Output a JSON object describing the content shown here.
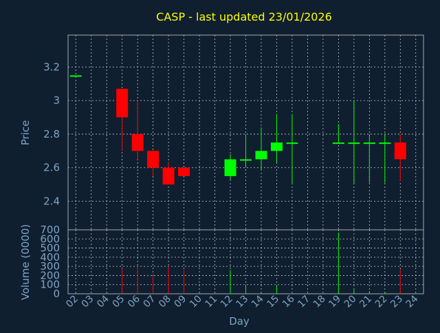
{
  "chart_data": {
    "type": "candlestick",
    "title": "CASP - last updated 23/01/2026",
    "xlabel": "Day",
    "ylabel": "Price",
    "volume_label": "Volume (0000)",
    "x_ticks": [
      "02",
      "03",
      "04",
      "05",
      "06",
      "07",
      "08",
      "09",
      "10",
      "11",
      "12",
      "13",
      "14",
      "15",
      "16",
      "17",
      "18",
      "19",
      "20",
      "21",
      "22",
      "23",
      "24"
    ],
    "price_ticks": [
      "2.4",
      "2.6",
      "2.8",
      "3",
      "3.2"
    ],
    "price_tick_values": [
      2.4,
      2.6,
      2.8,
      3.0,
      3.2
    ],
    "volume_ticks": [
      "0",
      "100",
      "200",
      "300",
      "400",
      "500",
      "600",
      "700"
    ],
    "volume_tick_values": [
      0,
      100,
      200,
      300,
      400,
      500,
      600,
      700
    ],
    "price_ylim": [
      2.23,
      3.39
    ],
    "volume_ylim": [
      0,
      700
    ],
    "grid": true,
    "colors": {
      "up": "#00ff00",
      "down": "#ff0000",
      "title": "#ffff00",
      "axis_text": "#7fa4c4",
      "grid": "#c8c8c8",
      "frame": "#aaaaaa"
    },
    "candles": [
      {
        "day": "02",
        "open": 3.15,
        "high": 3.15,
        "low": 3.15,
        "close": 3.15
      },
      {
        "day": "05",
        "open": 3.07,
        "high": 3.07,
        "low": 2.7,
        "close": 2.9
      },
      {
        "day": "06",
        "open": 2.8,
        "high": 3.0,
        "low": 2.65,
        "close": 2.7
      },
      {
        "day": "07",
        "open": 2.7,
        "high": 2.7,
        "low": 2.55,
        "close": 2.6
      },
      {
        "day": "08",
        "open": 2.6,
        "high": 2.63,
        "low": 2.5,
        "close": 2.5
      },
      {
        "day": "09",
        "open": 2.6,
        "high": 2.6,
        "low": 2.55,
        "close": 2.55
      },
      {
        "day": "12",
        "open": 2.55,
        "high": 2.68,
        "low": 2.53,
        "close": 2.65
      },
      {
        "day": "13",
        "open": 2.65,
        "high": 2.8,
        "low": 2.6,
        "close": 2.65
      },
      {
        "day": "14",
        "open": 2.65,
        "high": 2.84,
        "low": 2.59,
        "close": 2.7
      },
      {
        "day": "15",
        "open": 2.7,
        "high": 2.92,
        "low": 2.63,
        "close": 2.75
      },
      {
        "day": "16",
        "open": 2.75,
        "high": 2.92,
        "low": 2.5,
        "close": 2.75
      },
      {
        "day": "19",
        "open": 2.75,
        "high": 2.86,
        "low": 2.75,
        "close": 2.75
      },
      {
        "day": "20",
        "open": 2.75,
        "high": 3.0,
        "low": 2.5,
        "close": 2.75
      },
      {
        "day": "21",
        "open": 2.75,
        "high": 2.8,
        "low": 2.51,
        "close": 2.75
      },
      {
        "day": "22",
        "open": 2.75,
        "high": 2.8,
        "low": 2.51,
        "close": 2.75
      },
      {
        "day": "23",
        "open": 2.75,
        "high": 2.8,
        "low": 2.52,
        "close": 2.65
      }
    ],
    "volume": [
      {
        "day": "05",
        "value": 280,
        "dir": "down"
      },
      {
        "day": "06",
        "value": 290,
        "dir": "down"
      },
      {
        "day": "07",
        "value": 200,
        "dir": "down"
      },
      {
        "day": "08",
        "value": 300,
        "dir": "down"
      },
      {
        "day": "09",
        "value": 260,
        "dir": "down"
      },
      {
        "day": "12",
        "value": 260,
        "dir": "up"
      },
      {
        "day": "13",
        "value": 100,
        "dir": "up"
      },
      {
        "day": "14",
        "value": 10,
        "dir": "up"
      },
      {
        "day": "15",
        "value": 90,
        "dir": "up"
      },
      {
        "day": "19",
        "value": 670,
        "dir": "up"
      },
      {
        "day": "20",
        "value": 50,
        "dir": "up"
      },
      {
        "day": "21",
        "value": 30,
        "dir": "up"
      },
      {
        "day": "22",
        "value": 20,
        "dir": "up"
      },
      {
        "day": "23",
        "value": 270,
        "dir": "down"
      }
    ]
  }
}
